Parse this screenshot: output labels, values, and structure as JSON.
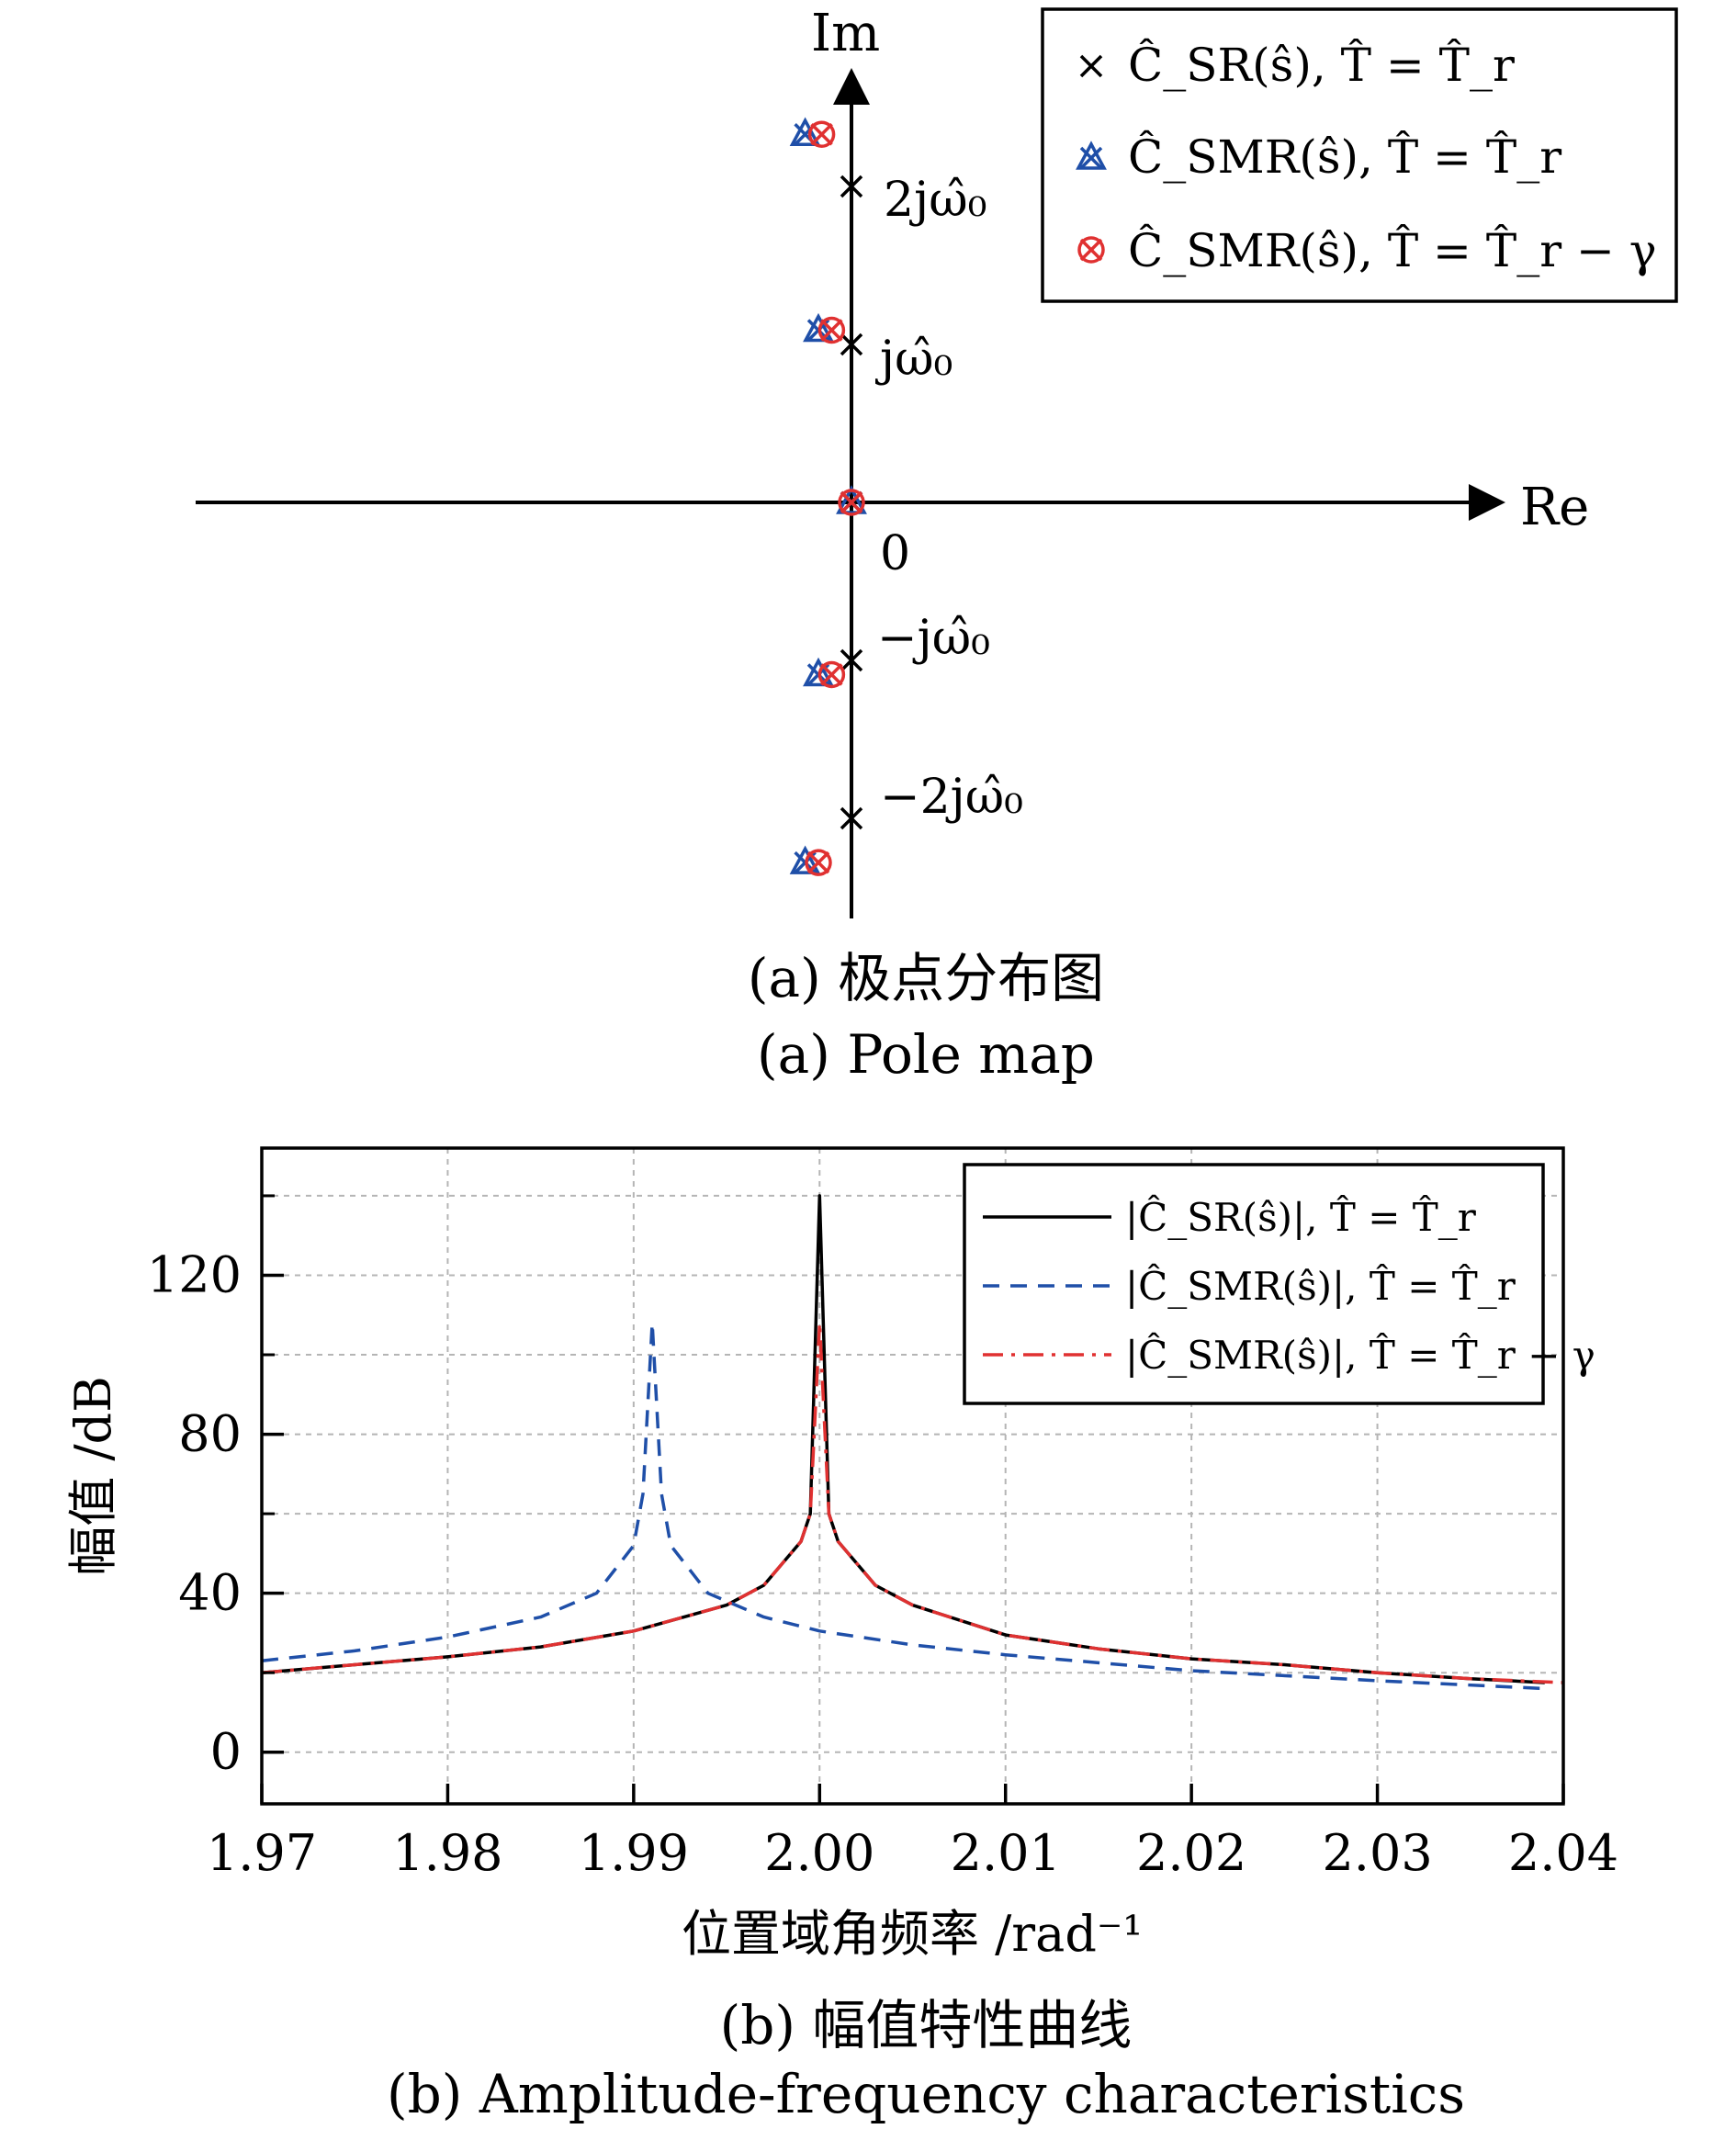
{
  "chart_data": [
    {
      "type": "scatter",
      "subplot": "a",
      "caption_cn": "(a) 极点分布图",
      "caption_en": "(a) Pole map",
      "axes": {
        "x_label": "Re",
        "y_label": "Im",
        "origin_label": "0"
      },
      "imag_tick_labels": [
        "2jω̂₀",
        "jω̂₀",
        "−jω̂₀",
        "−2jω̂₀"
      ],
      "legend": {
        "placement": "top-right",
        "entries": [
          "Ĉ_SR(ŝ),  T̂ = T̂_r",
          "Ĉ_SMR(ŝ),  T̂ = T̂_r",
          "Ĉ_SMR(ŝ),  T̂ = T̂_r − γ"
        ]
      },
      "series": [
        {
          "name": "Ĉ_SR(ŝ),  T̂ = T̂_r",
          "marker": "x",
          "color": "#000000",
          "points": [
            [
              0,
              2
            ],
            [
              0,
              1
            ],
            [
              0,
              0
            ],
            [
              0,
              -1
            ],
            [
              0,
              -2
            ]
          ]
        },
        {
          "name": "Ĉ_SMR(ŝ),  T̂ = T̂_r",
          "marker": "triangle-x",
          "color": "#1f4fa8",
          "points": [
            [
              -0.56,
              2.33
            ],
            [
              -0.4,
              1.09
            ],
            [
              0,
              0
            ],
            [
              -0.4,
              -1.09
            ],
            [
              -0.56,
              -2.28
            ]
          ]
        },
        {
          "name": "Ĉ_SMR(ŝ),  T̂ = T̂_r − γ",
          "marker": "circle-x",
          "color": "#e03131",
          "points": [
            [
              -0.36,
              2.33
            ],
            [
              -0.24,
              1.09
            ],
            [
              0,
              0
            ],
            [
              -0.24,
              -1.09
            ],
            [
              -0.4,
              -2.28
            ]
          ]
        }
      ]
    },
    {
      "type": "line",
      "subplot": "b",
      "caption_cn": "(b) 幅值特性曲线",
      "caption_en": "(b) Amplitude-frequency characteristics",
      "xlabel": "位置域角频率 /rad⁻¹",
      "ylabel": "幅值 /dB",
      "xlim": [
        1.97,
        2.04
      ],
      "ylim": [
        -13,
        152
      ],
      "xticks": [
        "1.97",
        "1.98",
        "1.99",
        "2.00",
        "2.01",
        "2.02",
        "2.03",
        "2.04"
      ],
      "yticks": [
        "0",
        "40",
        "80",
        "120"
      ],
      "grid": true,
      "legend": {
        "placement": "top-right",
        "entries": [
          "|Ĉ_SR(ŝ)|,  T̂ = T̂_r",
          "|Ĉ_SMR(ŝ)|,  T̂ = T̂_r",
          "|Ĉ_SMR(ŝ)|,  T̂ = T̂_r − γ"
        ]
      },
      "series": [
        {
          "name": "|Ĉ_SR(ŝ)|,  T̂ = T̂_r",
          "style": "solid",
          "color": "#000000",
          "x": [
            1.97,
            1.975,
            1.98,
            1.985,
            1.99,
            1.995,
            1.997,
            1.999,
            1.9995,
            2.0,
            2.0005,
            2.001,
            2.003,
            2.005,
            2.01,
            2.015,
            2.02,
            2.025,
            2.03,
            2.035,
            2.039
          ],
          "y": [
            20,
            22,
            24,
            26.5,
            30.5,
            37,
            42,
            53,
            60,
            140,
            60,
            53,
            42,
            37,
            29.5,
            26,
            23.5,
            22,
            20,
            18.5,
            17.5
          ]
        },
        {
          "name": "|Ĉ_SMR(ŝ)|,  T̂ = T̂_r",
          "style": "dashed",
          "color": "#1f4fa8",
          "x": [
            1.97,
            1.975,
            1.98,
            1.985,
            1.988,
            1.99,
            1.9905,
            1.991,
            1.9915,
            1.992,
            1.994,
            1.997,
            2.0,
            2.005,
            2.01,
            2.02,
            2.03,
            2.039
          ],
          "y": [
            23,
            25.5,
            29,
            34,
            40,
            52,
            65,
            108,
            65,
            52,
            40,
            34,
            30.5,
            27,
            24.5,
            20.5,
            18,
            16
          ]
        },
        {
          "name": "|Ĉ_SMR(ŝ)|,  T̂ = T̂_r − γ",
          "style": "dashdot",
          "color": "#e03131",
          "x": [
            1.97,
            1.975,
            1.98,
            1.985,
            1.99,
            1.995,
            1.997,
            1.999,
            1.9995,
            2.0,
            2.0005,
            2.001,
            2.003,
            2.005,
            2.01,
            2.015,
            2.02,
            2.025,
            2.03,
            2.035,
            2.04
          ],
          "y": [
            20,
            22,
            24,
            26.5,
            30.5,
            37,
            42,
            53,
            60,
            108,
            60,
            53,
            42,
            37,
            29.5,
            26,
            23.5,
            22,
            20,
            18.5,
            17.5
          ]
        }
      ]
    }
  ]
}
